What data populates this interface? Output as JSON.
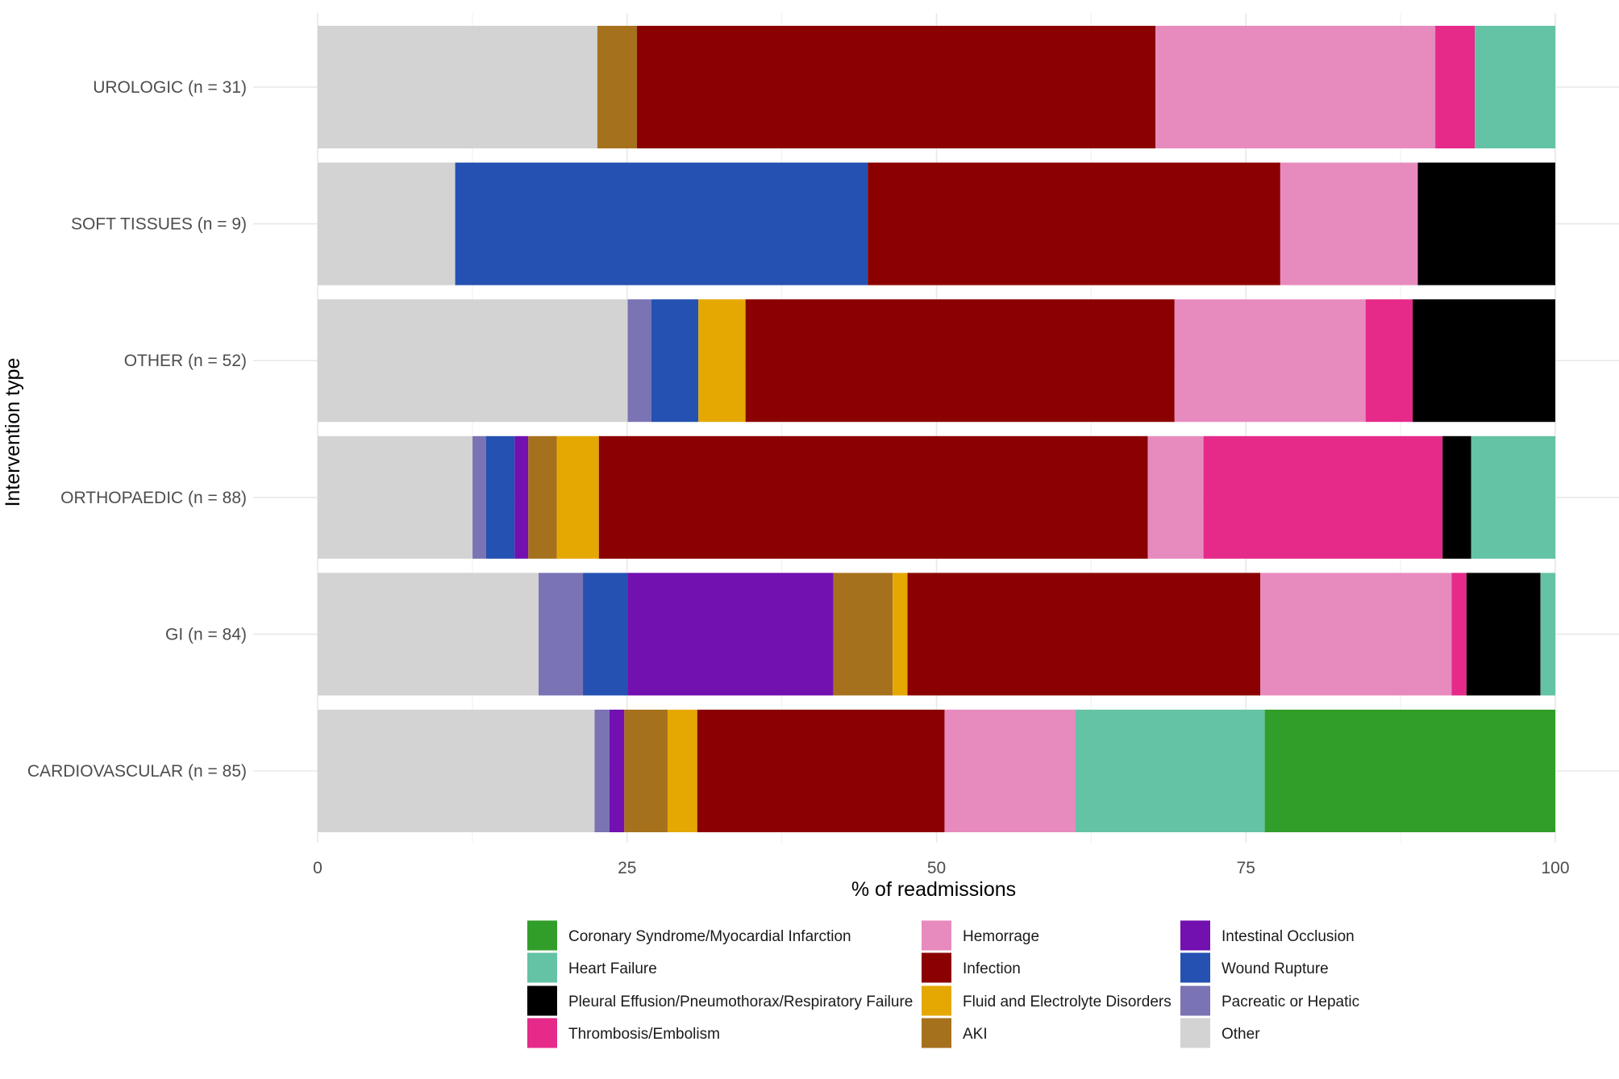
{
  "chart_data": {
    "type": "bar",
    "orientation": "horizontal",
    "stacked": true,
    "xlabel": "% of readmissions",
    "ylabel": "Intervention type",
    "xlim": [
      0,
      100
    ],
    "xticks": [
      0,
      25,
      50,
      75,
      100
    ],
    "grid": true,
    "legend_position": "bottom",
    "categories": [
      "UROLOGIC (n = 31)",
      "SOFT TISSUES (n = 9)",
      "OTHER (n = 52)",
      "ORTHOPAEDIC (n = 88)",
      "GI (n = 84)",
      "CARDIOVASCULAR (n = 85)"
    ],
    "series": [
      {
        "name": "Other",
        "color": "#d3d3d3",
        "values": [
          22.6,
          11.1,
          25.0,
          12.5,
          17.9,
          22.4
        ]
      },
      {
        "name": "Pacreatic or Hepatic",
        "color": "#7a73b4",
        "values": [
          0,
          0,
          1.9,
          1.1,
          3.6,
          1.2
        ]
      },
      {
        "name": "Wound Rupture",
        "color": "#2451b2",
        "values": [
          0,
          33.3,
          3.8,
          2.3,
          3.6,
          0
        ]
      },
      {
        "name": "Intestinal Occlusion",
        "color": "#7210b0",
        "values": [
          0,
          0,
          0,
          1.1,
          16.7,
          1.2
        ]
      },
      {
        "name": "AKI",
        "color": "#a6711d",
        "values": [
          3.2,
          0,
          0,
          2.3,
          4.8,
          3.5
        ]
      },
      {
        "name": "Fluid and Electrolyte Disorders",
        "color": "#e5a803",
        "values": [
          0,
          0,
          3.8,
          3.4,
          1.2,
          2.4
        ]
      },
      {
        "name": "Infection",
        "color": "#8b0000",
        "values": [
          41.9,
          33.3,
          34.6,
          44.3,
          28.6,
          20.0
        ]
      },
      {
        "name": "Hemorrage",
        "color": "#e78bbf",
        "values": [
          22.6,
          11.1,
          15.4,
          4.5,
          15.5,
          10.6
        ]
      },
      {
        "name": "Thrombosis/Embolism",
        "color": "#e52a8a",
        "values": [
          3.2,
          0,
          3.8,
          19.3,
          1.2,
          0
        ]
      },
      {
        "name": "Pleural Effusion/Pneumothorax/Respiratory Failure",
        "color": "#000000",
        "values": [
          0,
          11.1,
          11.5,
          2.3,
          6.0,
          0
        ]
      },
      {
        "name": "Heart Failure",
        "color": "#64c2a5",
        "values": [
          6.5,
          0,
          0,
          6.8,
          1.2,
          15.3
        ]
      },
      {
        "name": "Coronary Syndrome/Myocardial Infarction",
        "color": "#319e2a",
        "values": [
          0,
          0,
          0,
          0,
          0,
          23.5
        ]
      }
    ],
    "legend": [
      [
        "Coronary Syndrome/Myocardial Infarction",
        "Heart Failure",
        "Pleural Effusion/Pneumothorax/Respiratory Failure",
        "Thrombosis/Embolism"
      ],
      [
        "Hemorrage",
        "Infection",
        "Fluid and Electrolyte Disorders",
        "AKI"
      ],
      [
        "Intestinal Occlusion",
        "Wound Rupture",
        "Pacreatic or Hepatic",
        "Other"
      ]
    ]
  }
}
